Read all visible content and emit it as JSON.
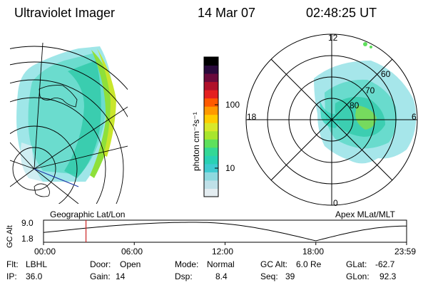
{
  "header": {
    "title": "Ultraviolet Imager",
    "date": "14 Mar 07",
    "time": "02:48:25 UT"
  },
  "colorbar": {
    "label": "photon cm⁻²s⁻¹",
    "ticks": [
      "100",
      "10"
    ],
    "scale": "log",
    "colors": [
      "#e4edf1",
      "#bfe0e8",
      "#8ed9df",
      "#3fcbd0",
      "#29d1b4",
      "#33d896",
      "#5ee05c",
      "#a8e52d",
      "#d8e82a",
      "#ffcc00",
      "#ff9900",
      "#ff5a00",
      "#e42020",
      "#b0102a",
      "#6a0a3c",
      "#2a0a3c",
      "#000000"
    ]
  },
  "polar_plot": {
    "mlt_labels": [
      "12",
      "18",
      "6",
      "0"
    ],
    "mlat_labels": [
      "60",
      "70",
      "80"
    ]
  },
  "timeline": {
    "ylabel": "GC Alt",
    "yticks": [
      "9.0",
      "1.8"
    ],
    "left_label": "Geographic Lat/Lon",
    "right_label": "Apex MLat/MLT",
    "xticks": [
      "00:00",
      "06:00",
      "12:00",
      "18:00",
      "23:59"
    ],
    "marker_time": "02:48:25"
  },
  "footer": {
    "row1": [
      {
        "label": "Flt:",
        "value": "LBHL"
      },
      {
        "label": "Door:",
        "value": "Open"
      },
      {
        "label": "Mode:",
        "value": "Normal"
      },
      {
        "label": "GC Alt:",
        "value": "6.0 Re"
      },
      {
        "label": "GLat:",
        "value": "-62.7"
      }
    ],
    "row2": [
      {
        "label": "IP:",
        "value": "36.0"
      },
      {
        "label": "Gain:",
        "value": "14"
      },
      {
        "label": "Dsp:",
        "value": "8.4"
      },
      {
        "label": "Seq:",
        "value": "39"
      },
      {
        "label": "GLon:",
        "value": "92.3"
      }
    ]
  }
}
